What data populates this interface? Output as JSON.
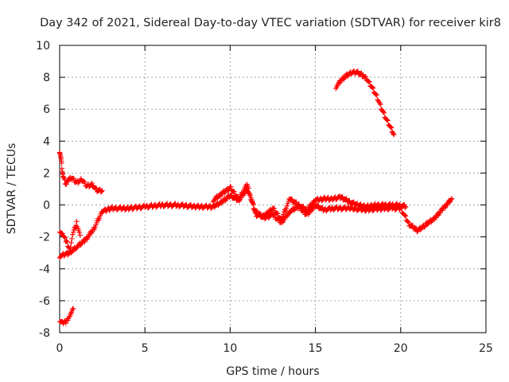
{
  "chart_data": {
    "type": "scatter",
    "title": "Day 342 of 2021, Sidereal Day-to-day VTEC variation (SDTVAR) for receiver kir8",
    "xlabel": "GPS time / hours",
    "ylabel": "SDTVAR / TECUs",
    "xlim": [
      0,
      25
    ],
    "ylim": [
      -8,
      10
    ],
    "xticks": [
      0,
      5,
      10,
      15,
      20,
      25
    ],
    "yticks": [
      -8,
      -6,
      -4,
      -2,
      0,
      2,
      4,
      6,
      8,
      10
    ],
    "grid": true,
    "legend": "none",
    "marker": "plus",
    "color": "#ff0000",
    "series": [
      {
        "name": "main-trace",
        "x": [
          0.0,
          0.3,
          0.6,
          1.0,
          1.5,
          2.0,
          2.5,
          3.0,
          4.0,
          5.0,
          6.0,
          7.0,
          8.0,
          9.0,
          9.5,
          10.0,
          10.5,
          11.0,
          11.5,
          12.0,
          12.5,
          13.0,
          13.5,
          14.0,
          14.5,
          15.0,
          15.5,
          16.0,
          17.0,
          18.0,
          19.0,
          19.5,
          20.0,
          20.5,
          21.0,
          21.5,
          22.0,
          22.5,
          23.0
        ],
        "y": [
          -3.2,
          -3.1,
          -3.0,
          -2.6,
          -2.2,
          -1.5,
          -0.4,
          -0.2,
          -0.2,
          -0.1,
          0.0,
          0.0,
          -0.1,
          -0.1,
          0.2,
          0.6,
          0.3,
          1.0,
          -0.4,
          -0.8,
          -0.6,
          -1.1,
          -0.4,
          -0.1,
          -0.6,
          0.0,
          -0.3,
          -0.2,
          -0.2,
          -0.3,
          -0.2,
          -0.2,
          -0.2,
          -1.2,
          -1.6,
          -1.2,
          -0.8,
          -0.2,
          0.4
        ]
      },
      {
        "name": "upper-trace",
        "x": [
          9.0,
          9.5,
          10.0,
          10.5,
          11.0,
          11.5,
          12.0,
          12.5,
          13.0,
          13.5,
          14.0,
          14.5,
          15.0,
          15.5,
          16.0,
          16.5,
          17.0,
          17.5,
          18.0,
          18.5,
          19.0,
          19.5,
          20.0,
          20.3
        ],
        "y": [
          0.3,
          0.7,
          1.1,
          0.4,
          1.3,
          -0.6,
          -0.7,
          -0.2,
          -0.9,
          0.4,
          0.0,
          -0.3,
          0.3,
          0.4,
          0.4,
          0.5,
          0.2,
          0.0,
          -0.1,
          0.0,
          0.0,
          0.0,
          0.0,
          -0.1
        ]
      },
      {
        "name": "lower-branch",
        "x": [
          0.0,
          0.2,
          0.4,
          0.6,
          0.8,
          1.0,
          1.2
        ],
        "y": [
          -1.6,
          -1.9,
          -2.3,
          -2.8,
          -1.7,
          -1.1,
          -1.9
        ]
      },
      {
        "name": "left-descent",
        "x": [
          0.0,
          0.05,
          0.1,
          0.15,
          0.2,
          0.3,
          0.4
        ],
        "y": [
          3.4,
          3.1,
          2.7,
          2.2,
          1.8,
          1.5,
          1.3
        ]
      },
      {
        "name": "left-hump",
        "x": [
          0.4,
          0.7,
          1.0,
          1.3,
          1.6,
          1.9,
          2.2,
          2.5
        ],
        "y": [
          1.5,
          1.7,
          1.4,
          1.6,
          1.2,
          1.3,
          0.9,
          0.9
        ]
      },
      {
        "name": "bottom-fragment",
        "x": [
          0.0,
          0.2,
          0.4,
          0.6,
          0.7,
          0.8
        ],
        "y": [
          -7.2,
          -7.4,
          -7.3,
          -6.9,
          -6.7,
          -6.5
        ]
      },
      {
        "name": "arc",
        "x": [
          16.2,
          16.5,
          16.8,
          17.1,
          17.4,
          17.7,
          18.0,
          18.3,
          18.6,
          18.9,
          19.2,
          19.5,
          19.6
        ],
        "y": [
          7.4,
          7.8,
          8.1,
          8.3,
          8.35,
          8.2,
          7.9,
          7.4,
          6.8,
          6.0,
          5.3,
          4.7,
          4.4
        ]
      }
    ]
  }
}
